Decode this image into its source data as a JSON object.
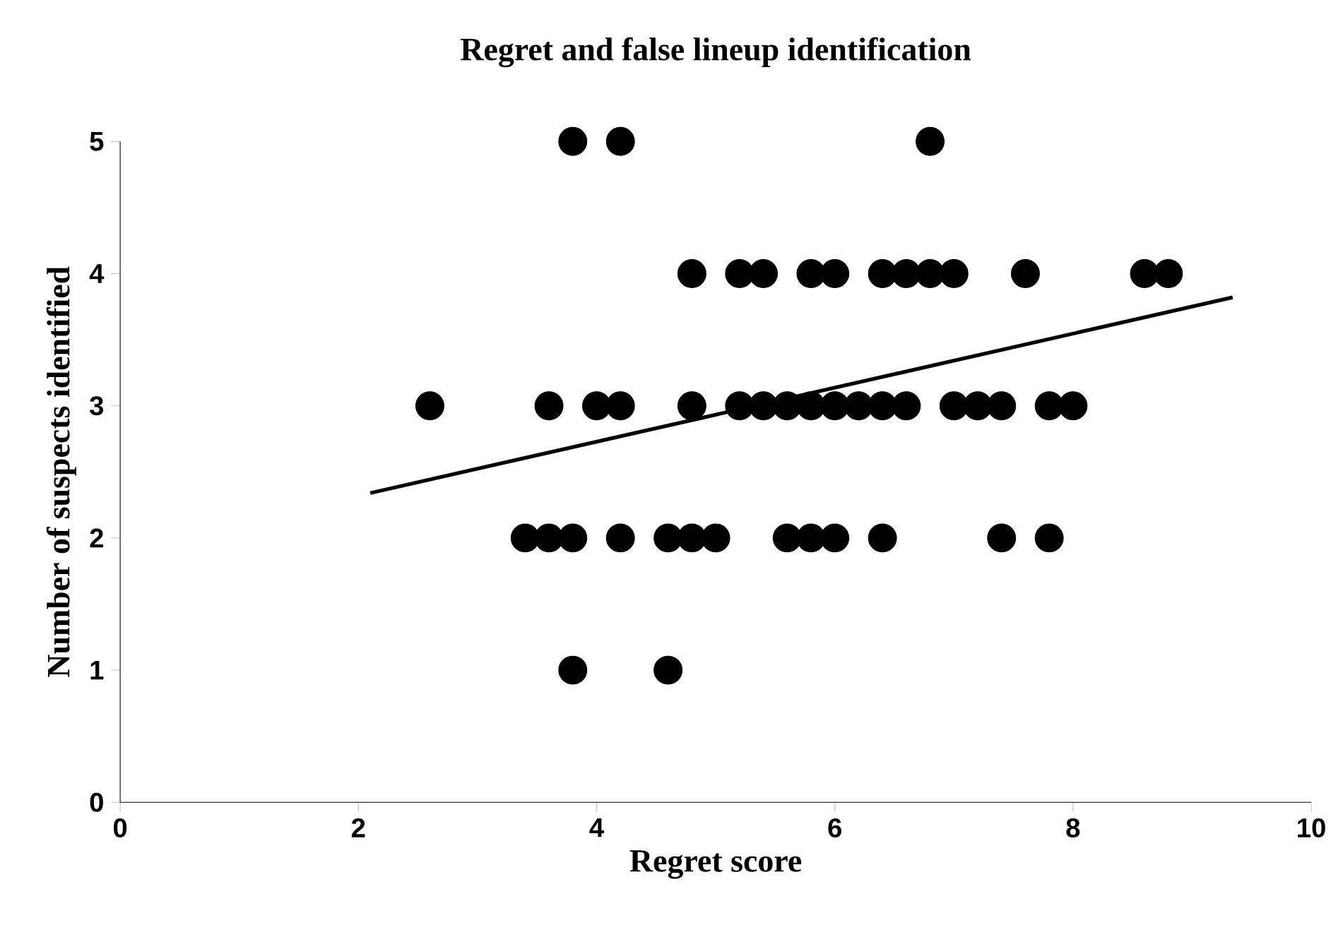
{
  "chart_data": {
    "type": "scatter",
    "title": "Regret and false lineup identification",
    "xlabel": "Regret score",
    "ylabel": "Number of suspects identified",
    "xlim": [
      0,
      10
    ],
    "xticks": [
      0,
      2,
      4,
      6,
      8,
      10
    ],
    "ylim": [
      0,
      5
    ],
    "yticks": [
      0,
      1,
      2,
      3,
      4,
      5
    ],
    "grid": false,
    "series": [
      {
        "marker": "circle",
        "color": "#000000",
        "x": [
          3.8,
          4.2,
          6.8,
          4.8,
          5.2,
          5.4,
          5.8,
          6.0,
          6.4,
          6.6,
          6.8,
          7.0,
          7.6,
          8.6,
          8.8,
          2.6,
          3.6,
          4.0,
          4.2,
          4.8,
          5.2,
          5.4,
          5.6,
          5.8,
          6.0,
          6.2,
          6.4,
          6.6,
          7.0,
          7.2,
          7.4,
          7.8,
          8.0,
          3.4,
          3.6,
          3.8,
          4.2,
          4.6,
          4.8,
          5.0,
          5.6,
          5.8,
          6.0,
          6.4,
          7.4,
          7.8,
          3.8,
          4.6
        ],
        "values": [
          5,
          5,
          5,
          4,
          4,
          4,
          4,
          4,
          4,
          4,
          4,
          4,
          4,
          4,
          4,
          3,
          3,
          3,
          3,
          3,
          3,
          3,
          3,
          3,
          3,
          3,
          3,
          3,
          3,
          3,
          3,
          3,
          3,
          2,
          2,
          2,
          2,
          2,
          2,
          2,
          2,
          2,
          2,
          2,
          2,
          2,
          1,
          1
        ]
      },
      {
        "type": "line",
        "marker": "none",
        "color": "#000000",
        "x": [
          2.1,
          9.34
        ],
        "values": [
          2.34,
          3.82
        ]
      }
    ]
  }
}
